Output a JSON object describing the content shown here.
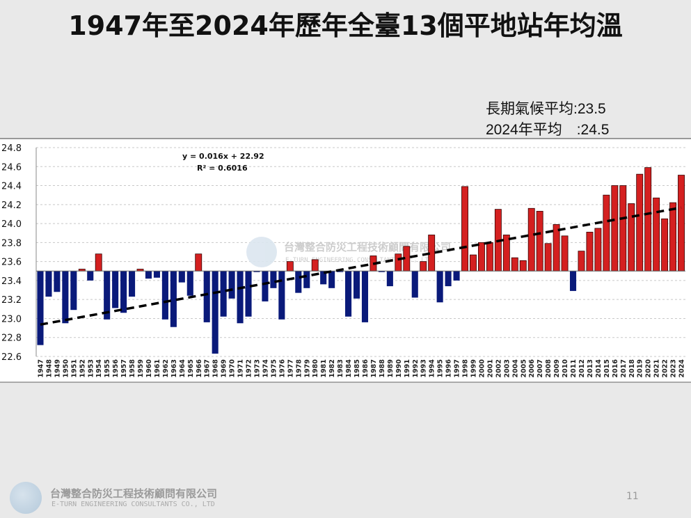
{
  "title": "1947年至2024年歷年全臺13個平地站年均溫",
  "notes": {
    "long_term": "長期氣候平均:23.5",
    "year_2024": "2024年平均　:24.5"
  },
  "footer": {
    "company_cn": "台灣整合防災工程技術顧問有限公司",
    "company_en": "E-TURN ENGINEERING CONSULTANTS CO., LTD",
    "page_number": "11"
  },
  "chart_data": {
    "type": "bar",
    "baseline": 23.5,
    "ylim": [
      22.6,
      24.8
    ],
    "yticks": [
      "22.6",
      "22.8",
      "23.0",
      "23.2",
      "23.4",
      "23.6",
      "23.8",
      "24.0",
      "24.2",
      "24.4",
      "24.6",
      "24.8"
    ],
    "grid": true,
    "colors": {
      "above": "#d42020",
      "below": "#0a1a7a",
      "trend": "#000000"
    },
    "trendline": {
      "equation": "y = 0.016x + 22.92",
      "r2": "R² = 0.6016",
      "slope": 0.016,
      "intercept": 22.92
    },
    "categories": [
      "1947",
      "1948",
      "1949",
      "1950",
      "1951",
      "1952",
      "1953",
      "1954",
      "1955",
      "1956",
      "1957",
      "1958",
      "1959",
      "1960",
      "1961",
      "1962",
      "1963",
      "1964",
      "1965",
      "1966",
      "1967",
      "1968",
      "1969",
      "1970",
      "1971",
      "1972",
      "1973",
      "1974",
      "1975",
      "1976",
      "1977",
      "1978",
      "1979",
      "1980",
      "1981",
      "1982",
      "1983",
      "1984",
      "1985",
      "1986",
      "1987",
      "1988",
      "1989",
      "1990",
      "1991",
      "1992",
      "1993",
      "1994",
      "1995",
      "1996",
      "1997",
      "1998",
      "1999",
      "2000",
      "2001",
      "2002",
      "2003",
      "2004",
      "2005",
      "2006",
      "2007",
      "2008",
      "2009",
      "2010",
      "2011",
      "2012",
      "2013",
      "2014",
      "2015",
      "2016",
      "2017",
      "2018",
      "2019",
      "2020",
      "2021",
      "2022",
      "2023",
      "2024"
    ],
    "values": [
      22.72,
      23.23,
      23.28,
      22.95,
      23.09,
      23.52,
      23.4,
      23.68,
      22.99,
      23.11,
      23.06,
      23.23,
      23.52,
      23.42,
      23.43,
      22.99,
      22.91,
      23.38,
      23.24,
      23.68,
      22.96,
      22.63,
      23.02,
      23.21,
      22.95,
      23.02,
      23.49,
      23.18,
      23.32,
      22.99,
      23.6,
      23.27,
      23.32,
      23.62,
      23.36,
      23.32,
      23.49,
      23.02,
      23.21,
      22.96,
      23.66,
      23.49,
      23.34,
      23.68,
      23.76,
      23.22,
      23.6,
      23.88,
      23.17,
      23.34,
      23.4,
      24.39,
      23.67,
      23.8,
      23.8,
      24.15,
      23.88,
      23.64,
      23.61,
      24.16,
      24.13,
      23.79,
      23.99,
      23.87,
      23.29,
      23.71,
      23.91,
      23.95,
      24.3,
      24.4,
      24.4,
      24.21,
      24.52,
      24.59,
      24.27,
      24.05,
      24.22,
      24.51
    ]
  }
}
